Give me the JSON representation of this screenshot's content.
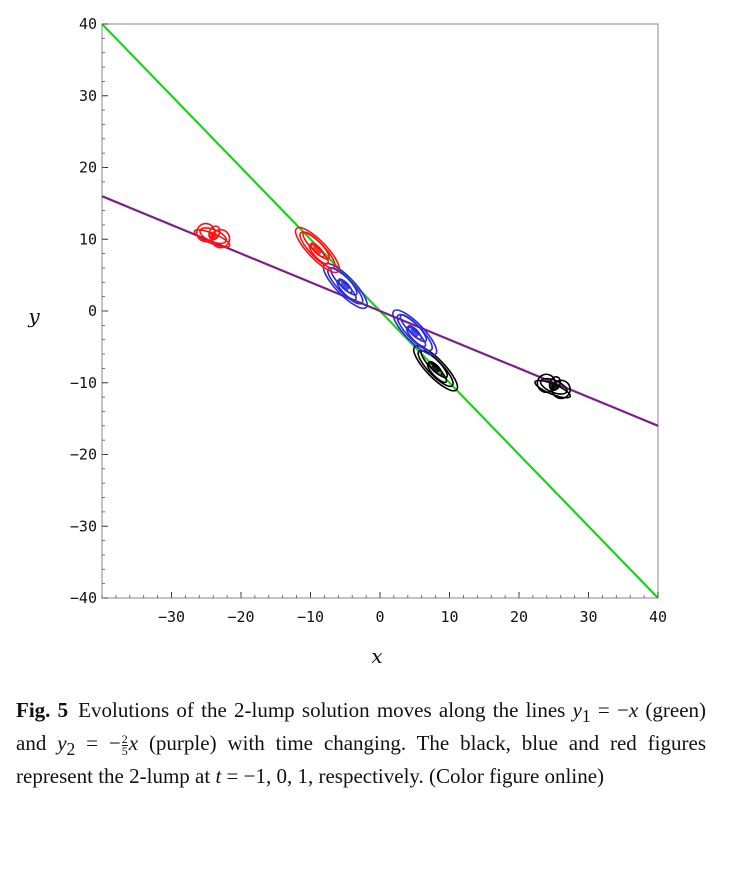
{
  "chart_data": {
    "type": "line",
    "title": "",
    "xlabel": "x",
    "ylabel": "y",
    "xlim": [
      -40,
      40
    ],
    "ylim": [
      -40,
      40
    ],
    "xticks": [
      -30,
      -20,
      -10,
      0,
      10,
      20,
      30,
      40
    ],
    "yticks": [
      40,
      30,
      20,
      10,
      0,
      -10,
      -20,
      -30,
      -40
    ],
    "xtick_labels": [
      "−30",
      "−20",
      "−10",
      "0",
      "10",
      "20",
      "30",
      "40"
    ],
    "ytick_labels": [
      "40",
      "30",
      "20",
      "10",
      "0",
      "−10",
      "−20",
      "−30",
      "−40"
    ],
    "grid": false,
    "series": [
      {
        "name": "y1 = −x",
        "color": "#18d418",
        "x": [
          -40,
          40
        ],
        "y": [
          40,
          -40
        ]
      },
      {
        "name": "y2 = −(2/5)x",
        "color": "#7d1f8a",
        "x": [
          -40,
          40
        ],
        "y": [
          16,
          -16
        ]
      }
    ],
    "lumps": [
      {
        "name": "t = -1",
        "color": "#000000",
        "centers": [
          [
            8,
            -8
          ],
          [
            25,
            -10.5
          ]
        ]
      },
      {
        "name": "t = 0",
        "color": "#2a2ae0",
        "centers": [
          [
            -5,
            3.5
          ],
          [
            5,
            -3
          ]
        ]
      },
      {
        "name": "t = 1",
        "color": "#ff1010",
        "centers": [
          [
            -9,
            8.5
          ],
          [
            -24,
            10.5
          ]
        ]
      }
    ]
  },
  "caption": {
    "label": "Fig. 5",
    "text_1": "Evolutions of the 2-lump solution moves along the lines ",
    "y1": "y",
    "y1_sub": "1",
    "eq1": " = −",
    "x1": "x",
    "green": " (green) and ",
    "y2": "y",
    "y2_sub": "2",
    "eq2": " = −",
    "frac_num": "2",
    "frac_den": "5",
    "x2": "x",
    "purple": " (purple) with time changing. The black, blue and red figures represent the 2-lump at ",
    "t": "t",
    "tvals": " = −1, 0, 1, respectively. (Color figure online)"
  }
}
